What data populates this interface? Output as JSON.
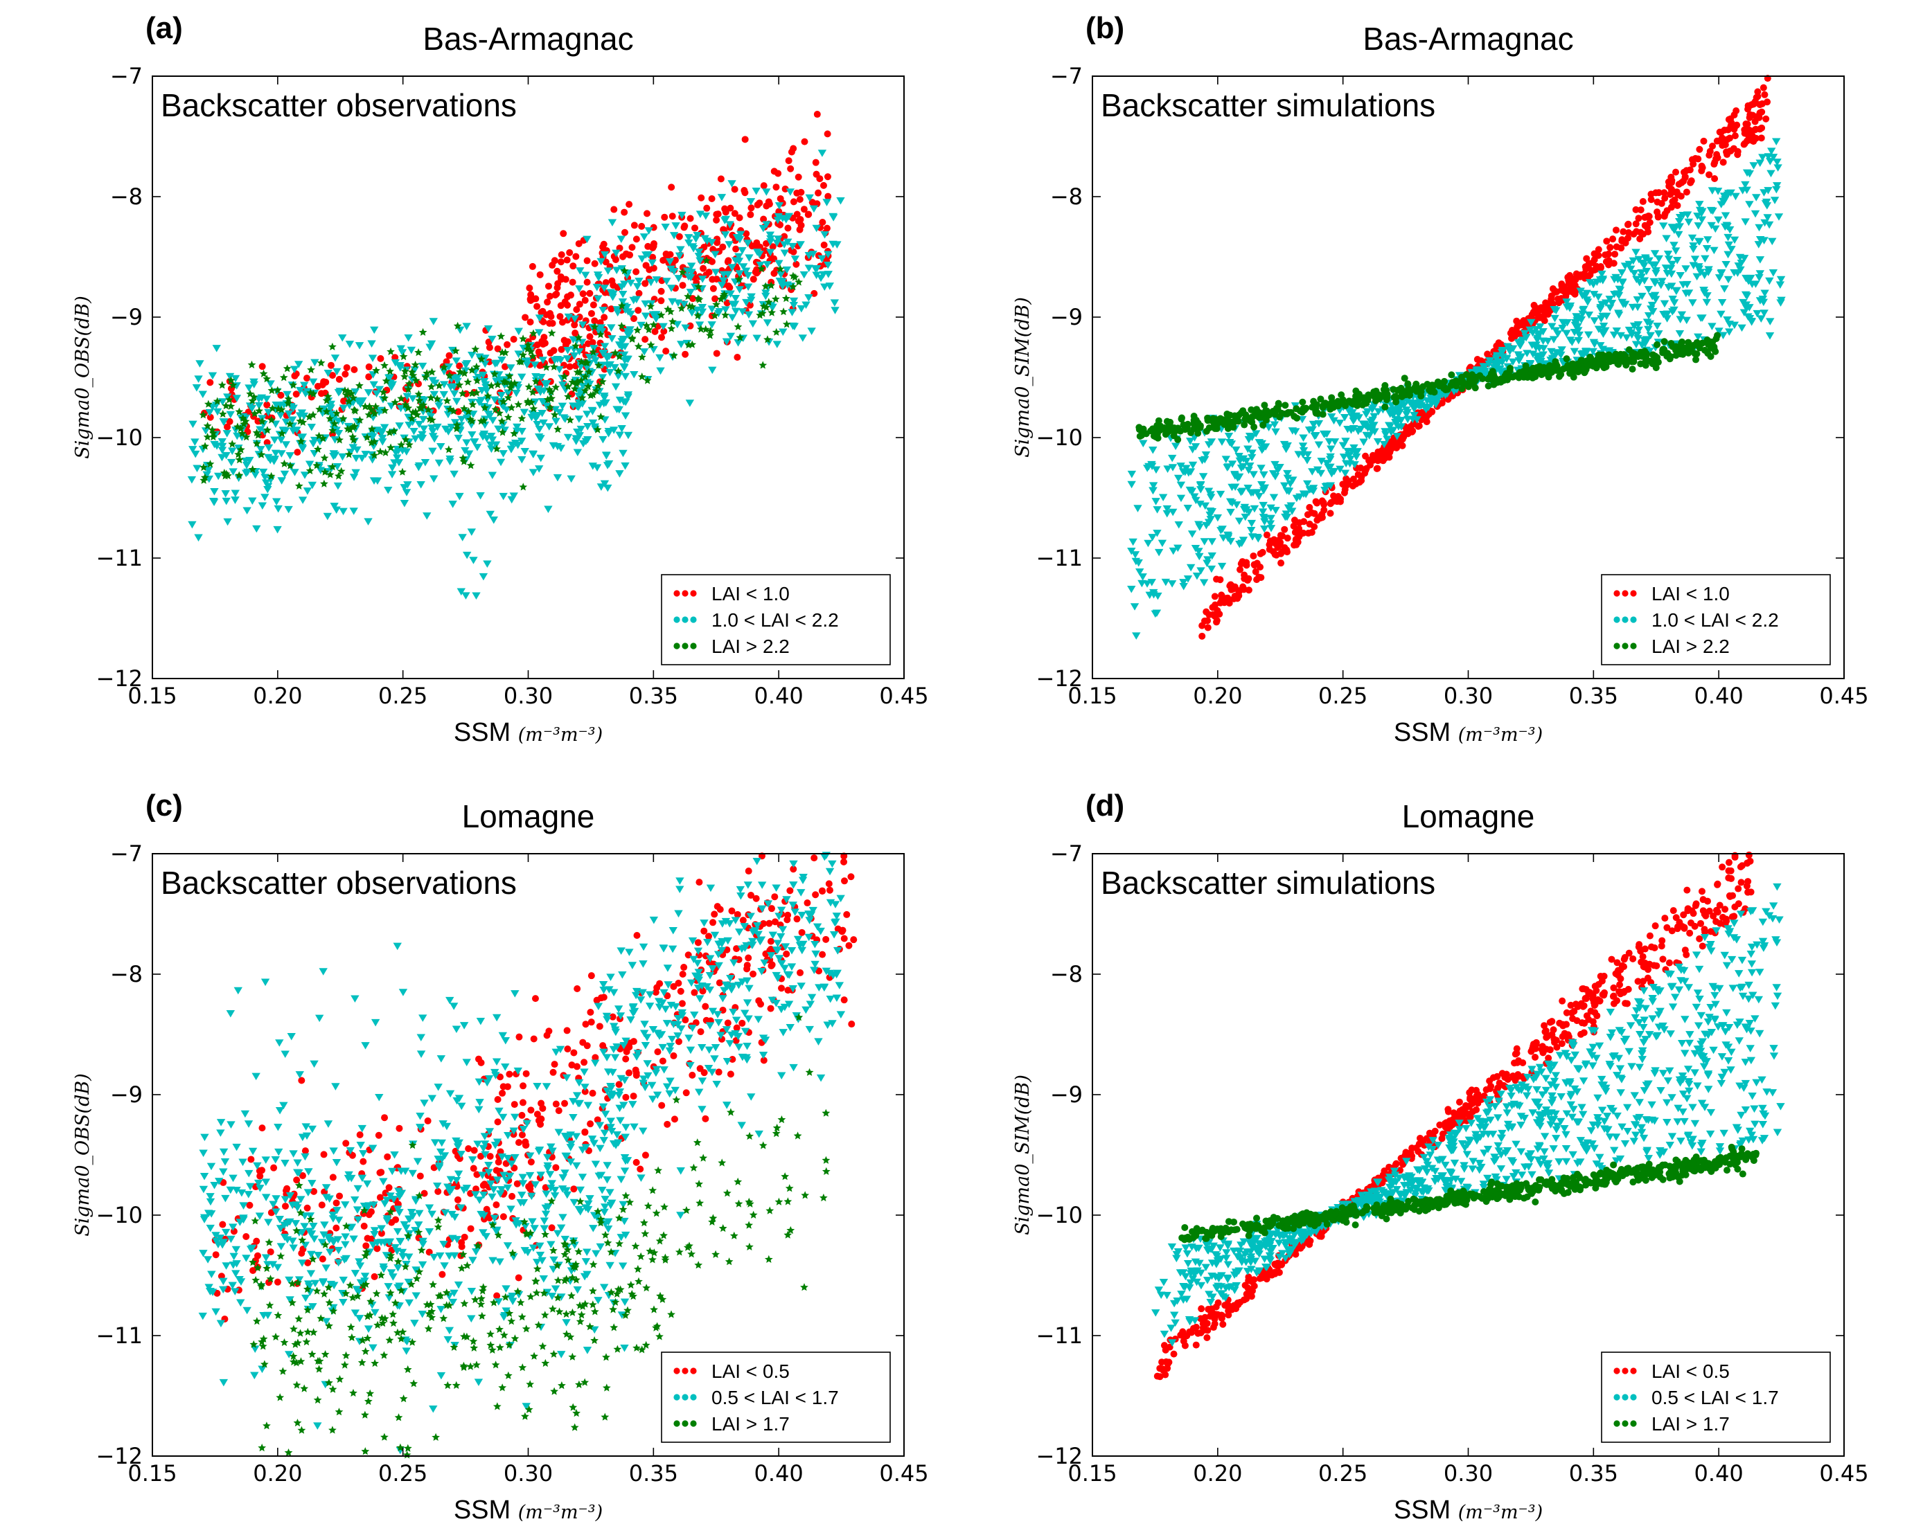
{
  "chart_data": [
    {
      "type": "scatter",
      "panel": "(a)",
      "site": "Bas-Armagnac",
      "title": "Backscatter observations",
      "xlabel": "SSM",
      "xunit": "(m⁻³m⁻³)",
      "ylabel": "Sigma0_OBS(dB)",
      "xlim": [
        0.15,
        0.45
      ],
      "ylim": [
        -12,
        -7
      ],
      "xticks": [
        "0.15",
        "0.20",
        "0.25",
        "0.30",
        "0.35",
        "0.40",
        "0.45"
      ],
      "yticks": [
        "-12",
        "-11",
        "-10",
        "-9",
        "-8",
        "-7"
      ],
      "legend_position": "lower-right",
      "series": [
        {
          "name": "LAI < 1.0",
          "color": "#ff0000",
          "marker": "circle",
          "clouds": [
            {
              "n": 130,
              "x": [
                0.17,
                0.33
              ],
              "a": -10.35,
              "b": 3.2,
              "spread": 0.55
            },
            {
              "n": 380,
              "x": [
                0.3,
                0.42
              ],
              "a": -11.3,
              "b": 7.5,
              "spread": 0.95
            }
          ]
        },
        {
          "name": "1.0 < LAI < 2.2",
          "color": "#00bfbf",
          "marker": "triangle",
          "clouds": [
            {
              "n": 640,
              "x": [
                0.165,
                0.34
              ],
              "a": -10.5,
              "b": 2.6,
              "spread": 1.05
            },
            {
              "n": 280,
              "x": [
                0.32,
                0.425
              ],
              "a": -11.0,
              "b": 6.0,
              "spread": 1.0
            },
            {
              "n": 10,
              "x": [
                0.27,
                0.29
              ],
              "a": -10.9,
              "b": 0,
              "spread": 0.55
            }
          ]
        },
        {
          "name": "LAI > 2.2",
          "color": "#007f00",
          "marker": "star",
          "clouds": [
            {
              "n": 300,
              "x": [
                0.17,
                0.33
              ],
              "a": -10.45,
              "b": 2.8,
              "spread": 0.75
            },
            {
              "n": 70,
              "x": [
                0.33,
                0.41
              ],
              "a": -10.6,
              "b": 4.4,
              "spread": 0.6
            }
          ]
        }
      ],
      "legend": [
        "LAI < 1.0",
        "1.0 < LAI < 2.2",
        "LAI > 2.2"
      ]
    },
    {
      "type": "scatter",
      "panel": "(b)",
      "site": "Bas-Armagnac",
      "title": "Backscatter simulations",
      "xlabel": "SSM",
      "xunit": "(m⁻³m⁻³)",
      "ylabel": "Sigma0_SIM(dB)",
      "xlim": [
        0.15,
        0.45
      ],
      "ylim": [
        -12,
        -7
      ],
      "xticks": [
        "0.15",
        "0.20",
        "0.25",
        "0.30",
        "0.35",
        "0.40",
        "0.45"
      ],
      "yticks": [
        "-12",
        "-11",
        "-10",
        "-9",
        "-8",
        "-7"
      ],
      "legend_position": "lower-right",
      "pivot": [
        0.297,
        -9.55
      ],
      "series": [
        {
          "name": "LAI < 1.0",
          "color": "#ff0000",
          "marker": "circle",
          "fans": [
            {
              "n": 620,
              "x": [
                0.193,
                0.42
              ],
              "slope": [
                17.0,
                20.5
              ]
            }
          ]
        },
        {
          "name": "1.0 < LAI < 2.2",
          "color": "#00bfbf",
          "marker": "triangle",
          "fans": [
            {
              "n": 1000,
              "x": [
                0.165,
                0.425
              ],
              "slope": [
                3.5,
                16.0
              ]
            }
          ]
        },
        {
          "name": "LAI > 2.2",
          "color": "#007f00",
          "marker": "circle",
          "fans": [
            {
              "n": 560,
              "x": [
                0.168,
                0.4
              ],
              "slope": [
                2.7,
                3.7
              ]
            }
          ]
        }
      ],
      "legend": [
        "LAI < 1.0",
        "1.0 < LAI < 2.2",
        "LAI > 2.2"
      ]
    },
    {
      "type": "scatter",
      "panel": "(c)",
      "site": "Lomagne",
      "title": "Backscatter observations",
      "xlabel": "SSM",
      "xunit": "(m⁻³m⁻³)",
      "ylabel": "Sigma0_OBS(dB)",
      "xlim": [
        0.15,
        0.45
      ],
      "ylim": [
        -12,
        -7
      ],
      "xticks": [
        "0.15",
        "0.20",
        "0.25",
        "0.30",
        "0.35",
        "0.40",
        "0.45"
      ],
      "yticks": [
        "-12",
        "-11",
        "-10",
        "-9",
        "-8",
        "-7"
      ],
      "legend_position": "lower-right",
      "series": [
        {
          "name": "LAI < 0.5",
          "color": "#ff0000",
          "marker": "circle",
          "clouds": [
            {
              "n": 170,
              "x": [
                0.175,
                0.3
              ],
              "a": -10.7,
              "b": 3.5,
              "spread": 1.1
            },
            {
              "n": 300,
              "x": [
                0.28,
                0.43
              ],
              "a": -13.4,
              "b": 14.0,
              "spread": 1.3
            }
          ]
        },
        {
          "name": "0.5 < LAI < 1.7",
          "color": "#00bfbf",
          "marker": "triangle",
          "clouds": [
            {
              "n": 620,
              "x": [
                0.17,
                0.34
              ],
              "a": -10.6,
              "b": 2.2,
              "spread": 1.7
            },
            {
              "n": 320,
              "x": [
                0.33,
                0.425
              ],
              "a": -12.3,
              "b": 11.0,
              "spread": 1.5
            },
            {
              "n": 25,
              "x": [
                0.18,
                0.3
              ],
              "a": -8.2,
              "b": 0,
              "spread": 1.1
            }
          ]
        },
        {
          "name": "LAI > 1.7",
          "color": "#007f00",
          "marker": "star",
          "clouds": [
            {
              "n": 320,
              "x": [
                0.19,
                0.36
              ],
              "a": -11.7,
              "b": 3.4,
              "spread": 1.5
            },
            {
              "n": 50,
              "x": [
                0.35,
                0.42
              ],
              "a": -11.5,
              "b": 4.5,
              "spread": 1.3
            }
          ]
        }
      ],
      "legend": [
        "LAI < 0.5",
        "0.5 < LAI < 1.7",
        "LAI > 1.7"
      ]
    },
    {
      "type": "scatter",
      "panel": "(d)",
      "site": "Lomagne",
      "title": "Backscatter simulations",
      "xlabel": "SSM",
      "xunit": "(m⁻³m⁻³)",
      "ylabel": "Sigma0_SIM(dB)",
      "xlim": [
        0.15,
        0.45
      ],
      "ylim": [
        -12,
        -7
      ],
      "xticks": [
        "0.15",
        "0.20",
        "0.25",
        "0.30",
        "0.35",
        "0.40",
        "0.45"
      ],
      "yticks": [
        "-12",
        "-11",
        "-10",
        "-9",
        "-8",
        "-7"
      ],
      "legend_position": "lower-right",
      "pivot": [
        0.248,
        -10.0
      ],
      "series": [
        {
          "name": "LAI < 0.5",
          "color": "#ff0000",
          "marker": "circle",
          "fans": [
            {
              "n": 560,
              "x": [
                0.175,
                0.415
              ],
              "slope": [
                15.5,
                19.0
              ]
            }
          ]
        },
        {
          "name": "0.5 < LAI < 1.7",
          "color": "#00bfbf",
          "marker": "triangle",
          "fans": [
            {
              "n": 1000,
              "x": [
                0.175,
                0.425
              ],
              "slope": [
                3.6,
                15.5
              ]
            }
          ]
        },
        {
          "name": "LAI > 1.7",
          "color": "#007f00",
          "marker": "circle",
          "fans": [
            {
              "n": 620,
              "x": [
                0.185,
                0.415
              ],
              "slope": [
                2.5,
                3.2
              ]
            }
          ]
        }
      ],
      "legend": [
        "LAI < 0.5",
        "0.5 < LAI < 1.7",
        "LAI > 1.7"
      ]
    }
  ]
}
